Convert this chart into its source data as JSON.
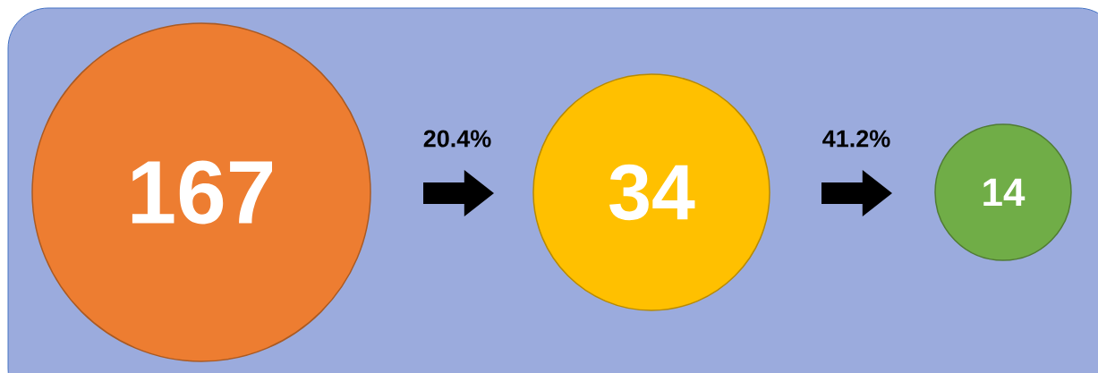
{
  "chart_data": {
    "type": "other",
    "values": [
      167,
      34,
      14
    ],
    "colors": [
      "#ed7d31",
      "#ffc000",
      "#70ad47"
    ],
    "data_labels": true,
    "annotations": [
      "20.4%",
      "41.2%"
    ]
  }
}
